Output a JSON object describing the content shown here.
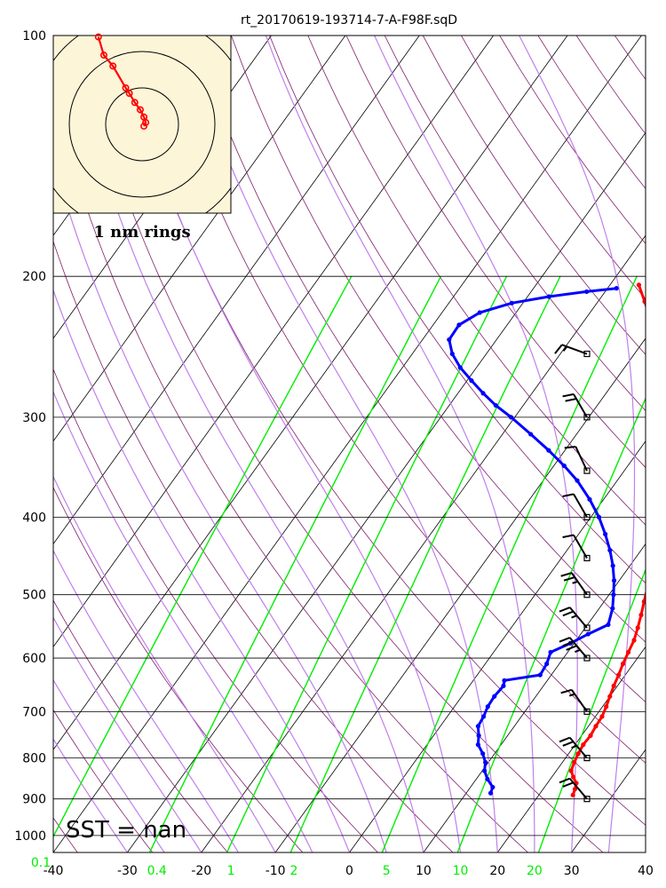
{
  "title": "rt_20170619-193714-7-A-F98F.sqD",
  "chart_data": {
    "type": "skew-t log-p sounding",
    "title": "rt_20170619-193714-7-A-F98F.sqD",
    "x_axis": {
      "label": "",
      "range": [
        -40,
        40
      ],
      "ticks": [
        -40,
        -30,
        -20,
        -10,
        0,
        10,
        20,
        30,
        40
      ]
    },
    "y_axis": {
      "label": "",
      "scale": "log",
      "range": [
        1050,
        100
      ],
      "ticks": [
        100,
        200,
        300,
        400,
        500,
        600,
        700,
        800,
        900,
        1000
      ]
    },
    "mixing_ratio_labels": [
      {
        "value": "0.1",
        "temp_at_bottom": -40
      },
      {
        "value": "0.4",
        "temp_at_bottom": -26
      },
      {
        "value": "1",
        "temp_at_bottom": -16
      },
      {
        "value": "2",
        "temp_at_bottom": -7.5
      },
      {
        "value": "5",
        "temp_at_bottom": 5
      },
      {
        "value": "10",
        "temp_at_bottom": 15
      },
      {
        "value": "20",
        "temp_at_bottom": 25
      }
    ],
    "colors": {
      "temperature": "#ff0000",
      "dewpoint": "#0000ff",
      "mixing_ratio": "#00ee00",
      "moist_adiabat": "#c080ec",
      "dry_adiabat": "#80206a",
      "isotherm": "#000000",
      "inset_background": "#fdf5d8"
    },
    "temperature": [
      [
        890,
        24.6
      ],
      [
        875,
        24.3
      ],
      [
        860,
        23.9
      ],
      [
        845,
        22.9
      ],
      [
        830,
        22.0
      ],
      [
        810,
        21.6
      ],
      [
        790,
        21.3
      ],
      [
        770,
        21.1
      ],
      [
        750,
        21.2
      ],
      [
        730,
        21.0
      ],
      [
        710,
        20.9
      ],
      [
        690,
        20.5
      ],
      [
        670,
        20.0
      ],
      [
        650,
        19.5
      ],
      [
        630,
        19.1
      ],
      [
        610,
        18.6
      ],
      [
        590,
        18.2
      ],
      [
        570,
        17.8
      ],
      [
        550,
        17.1
      ],
      [
        530,
        16.3
      ],
      [
        510,
        15.4
      ],
      [
        490,
        14.5
      ],
      [
        470,
        13.6
      ],
      [
        450,
        12.6
      ],
      [
        430,
        11.5
      ],
      [
        410,
        10.3
      ],
      [
        390,
        9.0
      ],
      [
        370,
        7.4
      ],
      [
        350,
        5.7
      ],
      [
        330,
        3.9
      ],
      [
        310,
        1.8
      ],
      [
        290,
        -0.5
      ],
      [
        275,
        -2.5
      ],
      [
        260,
        -4.9
      ],
      [
        245,
        -7.6
      ],
      [
        230,
        -10.4
      ],
      [
        215,
        -13.7
      ],
      [
        205,
        -16.1
      ]
    ],
    "dewpoint": [
      [
        885,
        13.3
      ],
      [
        870,
        13.0
      ],
      [
        850,
        11.5
      ],
      [
        830,
        10.3
      ],
      [
        810,
        9.6
      ],
      [
        790,
        8.4
      ],
      [
        770,
        6.9
      ],
      [
        750,
        6.1
      ],
      [
        730,
        5.1
      ],
      [
        710,
        4.9
      ],
      [
        690,
        4.5
      ],
      [
        670,
        4.4
      ],
      [
        650,
        4.6
      ],
      [
        640,
        4.2
      ],
      [
        630,
        8.5
      ],
      [
        610,
        8.3
      ],
      [
        590,
        7.7
      ],
      [
        575,
        9.5
      ],
      [
        560,
        11.0
      ],
      [
        545,
        12.8
      ],
      [
        520,
        11.8
      ],
      [
        500,
        10.6
      ],
      [
        480,
        9.3
      ],
      [
        460,
        7.7
      ],
      [
        440,
        5.8
      ],
      [
        420,
        3.6
      ],
      [
        400,
        1.1
      ],
      [
        380,
        -1.9
      ],
      [
        360,
        -5.4
      ],
      [
        345,
        -8.6
      ],
      [
        330,
        -12.2
      ],
      [
        315,
        -16.2
      ],
      [
        300,
        -20.5
      ],
      [
        290,
        -23.7
      ],
      [
        280,
        -26.6
      ],
      [
        270,
        -29.4
      ],
      [
        260,
        -32.2
      ],
      [
        250,
        -34.6
      ],
      [
        240,
        -36.4
      ],
      [
        230,
        -36.5
      ],
      [
        222,
        -34.9
      ],
      [
        216,
        -31.5
      ],
      [
        212,
        -27.1
      ],
      [
        209,
        -22.5
      ],
      [
        207,
        -18.8
      ]
    ],
    "wind_barbs": [
      {
        "p": 250,
        "dir": 290,
        "spd": 15
      },
      {
        "p": 300,
        "dir": 330,
        "spd": 20
      },
      {
        "p": 350,
        "dir": 335,
        "spd": 10
      },
      {
        "p": 400,
        "dir": 330,
        "spd": 10
      },
      {
        "p": 450,
        "dir": 330,
        "spd": 10
      },
      {
        "p": 500,
        "dir": 325,
        "spd": 25
      },
      {
        "p": 550,
        "dir": 320,
        "spd": 25
      },
      {
        "p": 600,
        "dir": 320,
        "spd": 35
      },
      {
        "p": 700,
        "dir": 325,
        "spd": 15
      },
      {
        "p": 800,
        "dir": 320,
        "spd": 25
      },
      {
        "p": 900,
        "dir": 320,
        "spd": 20
      }
    ],
    "sst_label": "SST =  nan",
    "hodograph": {
      "caption": "1 nm rings",
      "ring_radii_nm": [
        1,
        2,
        3
      ],
      "track_nm": [
        [
          0.05,
          -0.05
        ],
        [
          0.1,
          0.05
        ],
        [
          0.05,
          0.2
        ],
        [
          -0.05,
          0.4
        ],
        [
          -0.2,
          0.6
        ],
        [
          -0.35,
          0.85
        ],
        [
          -0.45,
          1.0
        ],
        [
          -0.8,
          1.6
        ],
        [
          -1.05,
          1.9
        ],
        [
          -1.2,
          2.4
        ]
      ]
    }
  }
}
